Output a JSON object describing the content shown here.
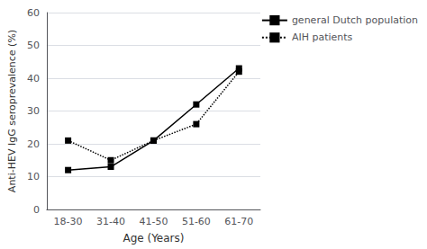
{
  "chart_data": {
    "type": "line",
    "categories": [
      "18-30",
      "31-40",
      "41-50",
      "51-60",
      "61-70"
    ],
    "series": [
      {
        "name": "general Dutch population",
        "color": "#000000",
        "values": [
          12,
          13,
          21,
          32,
          43
        ],
        "marker": "square",
        "line_style": "solid"
      },
      {
        "name": "AIH patients",
        "color": "#000000",
        "values": [
          21,
          15,
          21,
          26,
          42
        ],
        "marker": "square",
        "line_style": "dotted"
      }
    ],
    "xlabel": "Age (Years)",
    "ylabel": "Anti-HEV IgG seroprevalence (%)",
    "ylim": [
      0,
      60
    ],
    "yticks": [
      0,
      10,
      20,
      30,
      40,
      50,
      60
    ],
    "grid": true,
    "legend": "upper right"
  }
}
